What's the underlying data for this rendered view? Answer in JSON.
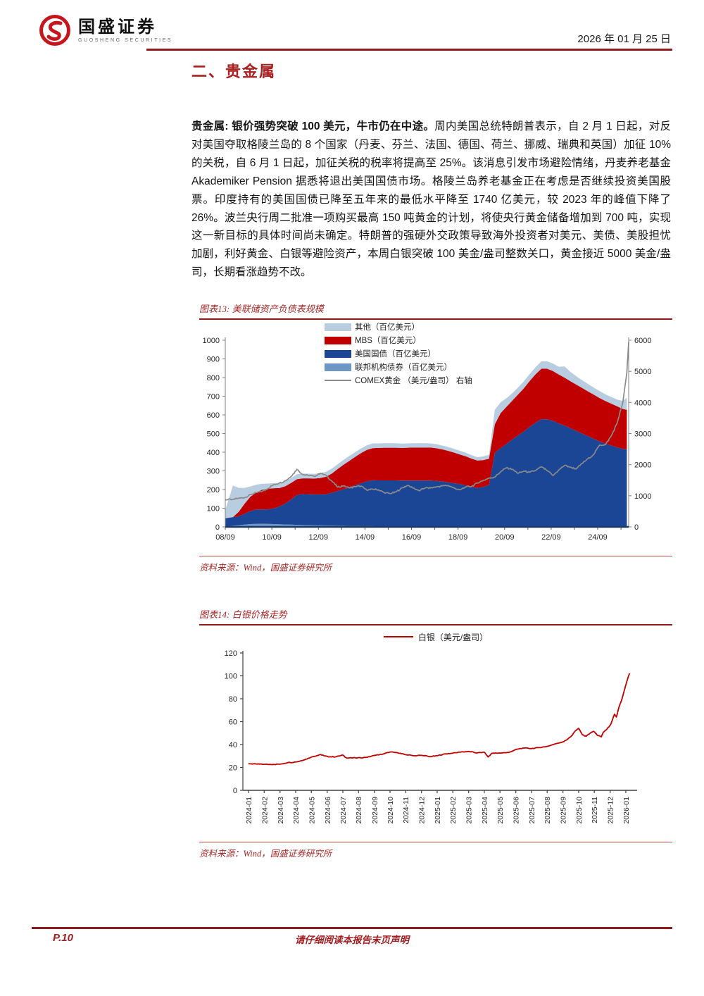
{
  "header": {
    "brand_cn": "国盛证券",
    "brand_en": "GUOSHENG SECURITIES",
    "date": "2026 年 01 月 25 日"
  },
  "section": {
    "title": "二、贵金属"
  },
  "body": {
    "lead": "贵金属: 银价强势突破 100 美元，牛市仍在中途。",
    "text": "周内美国总统特朗普表示，自 2 月 1 日起，对反对美国夺取格陵兰岛的 8 个国家（丹麦、芬兰、法国、德国、荷兰、挪威、瑞典和英国）加征 10%的关税，自 6 月 1 日起，加征关税的税率将提高至 25%。该消息引发市场避险情绪，丹麦养老基金 Akademiker Pension 据悉将退出美国国债市场。格陵兰岛养老基金正在考虑是否继续投资美国股票。印度持有的美国国债已降至五年来的最低水平降至 1740 亿美元，较 2023 年的峰值下降了 26%。波兰央行周二批准一项购买最高 150 吨黄金的计划，将使央行黄金储备增加到 700 吨，实现这一新目标的具体时间尚未确定。特朗普的强硬外交政策导致海外投资者对美元、美债、美股担忧加剧，利好黄金、白银等避险资产，本周白银突破 100 美金/盎司整数关口，黄金接近 5000 美金/盎司，长期看涨趋势不改。"
  },
  "figure13": {
    "caption": "图表13: 美联储资产负债表规模",
    "source": "资料来源：Wind，国盛证券研究所"
  },
  "figure14": {
    "caption": "图表14: 白银价格走势",
    "source": "资料来源：Wind，国盛证券研究所"
  },
  "footer": {
    "page": "P.10",
    "disclaimer": "请仔细阅读本报告末页声明"
  },
  "chart_data": [
    {
      "type": "area",
      "title": "美联储资产负债表规模",
      "legend": [
        {
          "name": "其他（百亿美元）",
          "color": "#b9cde1",
          "kind": "area"
        },
        {
          "name": "MBS（百亿美元）",
          "color": "#c00000",
          "kind": "area"
        },
        {
          "name": "美国国债（百亿美元）",
          "color": "#1b4595",
          "kind": "area"
        },
        {
          "name": "联邦机构债券（百亿美元）",
          "color": "#6f97c6",
          "kind": "area"
        },
        {
          "name": "COMEX黄金 （美元/盎司） 右轴",
          "color": "#8a8a8a",
          "kind": "line"
        }
      ],
      "left_axis": {
        "min": 0,
        "max": 1000,
        "step": 100
      },
      "right_axis": {
        "min": 0,
        "max": 6000,
        "step": 1000
      },
      "x_range": [
        2008.67,
        2026.0
      ],
      "x_ticks": [
        {
          "v": 2008.67,
          "label": "08/09"
        },
        {
          "v": 2010.67,
          "label": "10/09"
        },
        {
          "v": 2012.67,
          "label": "12/09"
        },
        {
          "v": 2014.67,
          "label": "14/09"
        },
        {
          "v": 2016.67,
          "label": "16/09"
        },
        {
          "v": 2018.67,
          "label": "18/09"
        },
        {
          "v": 2020.67,
          "label": "20/09"
        },
        {
          "v": 2022.67,
          "label": "22/09"
        },
        {
          "v": 2024.67,
          "label": "24/09"
        }
      ],
      "x": [
        2008.67,
        2009,
        2009.25,
        2009.5,
        2009.75,
        2010,
        2010.25,
        2010.5,
        2010.75,
        2011,
        2011.25,
        2011.5,
        2011.75,
        2012,
        2012.25,
        2012.5,
        2012.75,
        2013,
        2013.25,
        2013.5,
        2013.75,
        2014,
        2014.25,
        2014.5,
        2014.75,
        2015,
        2015.25,
        2015.5,
        2015.75,
        2016,
        2016.25,
        2016.5,
        2016.75,
        2017,
        2017.25,
        2017.5,
        2017.75,
        2018,
        2018.25,
        2018.5,
        2018.75,
        2019,
        2019.25,
        2019.5,
        2019.75,
        2020,
        2020.25,
        2020.5,
        2020.75,
        2021,
        2021.25,
        2021.5,
        2021.75,
        2022,
        2022.25,
        2022.5,
        2022.75,
        2023,
        2023.25,
        2023.5,
        2023.75,
        2024,
        2024.25,
        2024.5,
        2024.75,
        2025,
        2025.25,
        2025.5,
        2025.75,
        2025.92
      ],
      "stack": [
        {
          "name": "联邦机构债券（百亿美元）",
          "color": "#6f97c6",
          "values": [
            1,
            6,
            9,
            12,
            15,
            16,
            17,
            16,
            15,
            14,
            13,
            12,
            11,
            10,
            9,
            8,
            8,
            7,
            7,
            6,
            6,
            5,
            5,
            4,
            4,
            4,
            3,
            3,
            3,
            3,
            2,
            2,
            2,
            2,
            2,
            2,
            2,
            1,
            1,
            1,
            1,
            1,
            0.6,
            0.4,
            0.3,
            0.3,
            0.3,
            0.3,
            0.3,
            0.3,
            0.3,
            0.2,
            0.2,
            0.2,
            0.2,
            0.2,
            0.2,
            0.2,
            0.2,
            0.2,
            0.2,
            0.2,
            0.2,
            0.2,
            0.2,
            0.2,
            0.2,
            0.2,
            0.2,
            0.2
          ]
        },
        {
          "name": "美国国债（百亿美元）",
          "color": "#1b4595",
          "values": [
            45,
            46,
            48,
            58,
            70,
            77,
            77,
            78,
            84,
            96,
            112,
            135,
            160,
            166,
            166,
            166,
            166,
            168,
            176,
            186,
            196,
            207,
            218,
            230,
            240,
            246,
            246,
            246,
            246,
            246,
            246,
            246,
            246,
            246,
            246,
            246,
            244,
            242,
            238,
            233,
            228,
            222,
            214,
            208,
            214,
            224,
            397,
            422,
            444,
            468,
            490,
            512,
            536,
            558,
            577,
            576,
            568,
            554,
            542,
            528,
            514,
            500,
            486,
            472,
            458,
            446,
            436,
            426,
            418,
            415
          ]
        },
        {
          "name": "MBS（百亿美元）",
          "color": "#c00000",
          "values": [
            0,
            1,
            24,
            54,
            77,
            91,
            105,
            110,
            108,
            98,
            93,
            89,
            85,
            84,
            85,
            85,
            88,
            94,
            103,
            118,
            131,
            142,
            152,
            161,
            168,
            172,
            174,
            175,
            175,
            175,
            175,
            176,
            177,
            177,
            177,
            177,
            175,
            172,
            168,
            164,
            159,
            155,
            151,
            147,
            143,
            141,
            152,
            187,
            199,
            208,
            219,
            231,
            246,
            259,
            270,
            271,
            267,
            262,
            257,
            252,
            248,
            244,
            240,
            236,
            232,
            228,
            224,
            220,
            214,
            212
          ]
        },
        {
          "name": "其他（百亿美元）",
          "color": "#b9cde1",
          "values": [
            45,
            168,
            128,
            85,
            55,
            42,
            32,
            28,
            28,
            27,
            26,
            26,
            26,
            26,
            25,
            25,
            26,
            26,
            26,
            26,
            26,
            26,
            25,
            25,
            25,
            25,
            24,
            24,
            24,
            24,
            23,
            23,
            23,
            23,
            23,
            22,
            22,
            21,
            21,
            20,
            20,
            19,
            19,
            18,
            20,
            21,
            78,
            58,
            46,
            40,
            38,
            37,
            37,
            38,
            40,
            40,
            40,
            42,
            60,
            50,
            45,
            42,
            40,
            38,
            37,
            36,
            36,
            36,
            42,
            65
          ]
        }
      ],
      "line": {
        "name": "COMEX黄金 （美元/盎司） 右轴",
        "color": "#8a8a8a",
        "axis": "right",
        "noise": 55,
        "x": [
          2008.67,
          2009,
          2009.25,
          2009.5,
          2009.75,
          2010,
          2010.25,
          2010.5,
          2010.75,
          2011,
          2011.25,
          2011.5,
          2011.75,
          2012,
          2012.25,
          2012.5,
          2012.75,
          2013,
          2013.25,
          2013.5,
          2013.75,
          2014,
          2014.25,
          2014.5,
          2014.75,
          2015,
          2015.25,
          2015.5,
          2015.75,
          2016,
          2016.25,
          2016.5,
          2016.75,
          2017,
          2017.25,
          2017.5,
          2017.75,
          2018,
          2018.25,
          2018.5,
          2018.75,
          2019,
          2019.25,
          2019.5,
          2019.75,
          2020,
          2020.25,
          2020.5,
          2020.75,
          2021,
          2021.25,
          2021.5,
          2021.75,
          2022,
          2022.25,
          2022.5,
          2022.75,
          2023,
          2023.25,
          2023.5,
          2023.75,
          2024,
          2024.25,
          2024.5,
          2024.75,
          2025,
          2025.25,
          2025.5,
          2025.75,
          2025.92,
          2026.0
        ],
        "values": [
          870,
          880,
          920,
          940,
          1040,
          1100,
          1140,
          1230,
          1360,
          1410,
          1480,
          1620,
          1850,
          1680,
          1650,
          1620,
          1720,
          1660,
          1470,
          1280,
          1320,
          1250,
          1290,
          1310,
          1180,
          1210,
          1190,
          1100,
          1070,
          1120,
          1250,
          1330,
          1250,
          1160,
          1250,
          1250,
          1290,
          1320,
          1330,
          1250,
          1190,
          1280,
          1300,
          1410,
          1490,
          1570,
          1600,
          1770,
          1900,
          1850,
          1720,
          1790,
          1760,
          1810,
          1930,
          1810,
          1650,
          1830,
          1980,
          1920,
          1860,
          2040,
          2190,
          2330,
          2630,
          2640,
          2920,
          3330,
          4000,
          4950,
          5950
        ]
      }
    },
    {
      "type": "line",
      "title": "白银价格走势",
      "legend": [
        {
          "name": "白银（美元/盎司）",
          "color": "#c00000",
          "kind": "line"
        }
      ],
      "y_axis": {
        "min": 0,
        "max": 120,
        "step": 20
      },
      "x_range": [
        2023.97,
        2026.06
      ],
      "x_ticks": [
        {
          "v": 2024.0,
          "label": "2024-01"
        },
        {
          "v": 2024.083,
          "label": "2024-02"
        },
        {
          "v": 2024.167,
          "label": "2024-03"
        },
        {
          "v": 2024.25,
          "label": "2024-04"
        },
        {
          "v": 2024.333,
          "label": "2024-05"
        },
        {
          "v": 2024.417,
          "label": "2024-06"
        },
        {
          "v": 2024.5,
          "label": "2024-07"
        },
        {
          "v": 2024.583,
          "label": "2024-08"
        },
        {
          "v": 2024.667,
          "label": "2024-09"
        },
        {
          "v": 2024.75,
          "label": "2024-10"
        },
        {
          "v": 2024.833,
          "label": "2024-11"
        },
        {
          "v": 2024.917,
          "label": "2024-12"
        },
        {
          "v": 2025.0,
          "label": "2025-01"
        },
        {
          "v": 2025.083,
          "label": "2025-02"
        },
        {
          "v": 2025.167,
          "label": "2025-03"
        },
        {
          "v": 2025.25,
          "label": "2025-04"
        },
        {
          "v": 2025.333,
          "label": "2025-05"
        },
        {
          "v": 2025.417,
          "label": "2025-06"
        },
        {
          "v": 2025.5,
          "label": "2025-07"
        },
        {
          "v": 2025.583,
          "label": "2025-08"
        },
        {
          "v": 2025.667,
          "label": "2025-09"
        },
        {
          "v": 2025.75,
          "label": "2025-10"
        },
        {
          "v": 2025.833,
          "label": "2025-11"
        },
        {
          "v": 2025.917,
          "label": "2025-12"
        },
        {
          "v": 2026.0,
          "label": "2026-01"
        }
      ],
      "series": [
        {
          "name": "白银（美元/盎司）",
          "color": "#c00000",
          "noise": 0.7,
          "x": [
            2024.0,
            2024.04,
            2024.08,
            2024.13,
            2024.17,
            2024.21,
            2024.25,
            2024.29,
            2024.33,
            2024.38,
            2024.4,
            2024.42,
            2024.46,
            2024.5,
            2024.52,
            2024.58,
            2024.63,
            2024.67,
            2024.71,
            2024.75,
            2024.79,
            2024.83,
            2024.88,
            2024.92,
            2024.96,
            2025.0,
            2025.04,
            2025.08,
            2025.13,
            2025.17,
            2025.21,
            2025.25,
            2025.27,
            2025.29,
            2025.33,
            2025.38,
            2025.42,
            2025.46,
            2025.5,
            2025.54,
            2025.58,
            2025.63,
            2025.67,
            2025.69,
            2025.71,
            2025.73,
            2025.75,
            2025.77,
            2025.79,
            2025.81,
            2025.83,
            2025.85,
            2025.87,
            2025.88,
            2025.9,
            2025.92,
            2025.93,
            2025.94,
            2025.95,
            2025.96,
            2025.97,
            2025.98,
            2025.99,
            2026.0,
            2026.01,
            2026.02
          ],
          "values": [
            23.3,
            23.0,
            22.7,
            22.6,
            22.9,
            24.3,
            24.7,
            26.3,
            28.8,
            31.3,
            30.2,
            29.4,
            29.2,
            30.8,
            28.2,
            28.4,
            28.9,
            30.6,
            31.5,
            33.5,
            32.8,
            31.2,
            30.2,
            30.6,
            29.4,
            30.2,
            31.8,
            32.4,
            33.6,
            33.9,
            32.6,
            33.3,
            29.2,
            32.3,
            32.6,
            33.1,
            35.8,
            36.9,
            36.5,
            37.3,
            38.2,
            40.8,
            42.5,
            44.5,
            47.0,
            51.5,
            54.2,
            48.5,
            47.2,
            49.8,
            51.5,
            48.0,
            46.8,
            50.5,
            53.5,
            57.5,
            62.0,
            66.5,
            64.0,
            70.5,
            75.5,
            80.0,
            86.0,
            92.0,
            97.5,
            102.3
          ]
        }
      ]
    }
  ]
}
